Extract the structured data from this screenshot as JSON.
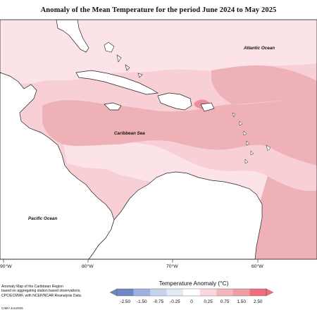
{
  "title": "Anomaly of the Mean Temperature for the period June 2024 to May 2025",
  "labels": {
    "atlantic": "Atlantic Ocean",
    "caribbean": "Caribbean Sea",
    "pacific": "Pacific Ocean"
  },
  "longitude_ticks": [
    "90°W",
    "80°W",
    "70°W",
    "60°W"
  ],
  "footnote": [
    "Anomaly Map of the Caribbean Region",
    "based on aggregating station based observations,",
    "CPC/ECMWF, with NCEP/NCAR Reanalysis Data."
  ],
  "credit": "CIMH Jun2025",
  "legend": {
    "title": "Temperature Anomaly (°C)",
    "ticks": [
      "-2.50",
      "-1.50",
      "-0.75",
      "-0.25",
      "0",
      "0.25",
      "0.75",
      "1.50",
      "2.50"
    ],
    "colors": [
      "#6f88c4",
      "#9eb2e2",
      "#c6d2ee",
      "#e2e8f4",
      "#ffffff",
      "#f9d9de",
      "#f2b6bd",
      "#ee9ea4",
      "#f06f7c"
    ]
  },
  "colors": {
    "anomaly_low": "#fbe0e5",
    "anomaly_mid": "#f2bdc3",
    "anomaly_high": "#ea959d",
    "land": "#ffffff",
    "coast": "#222222"
  }
}
